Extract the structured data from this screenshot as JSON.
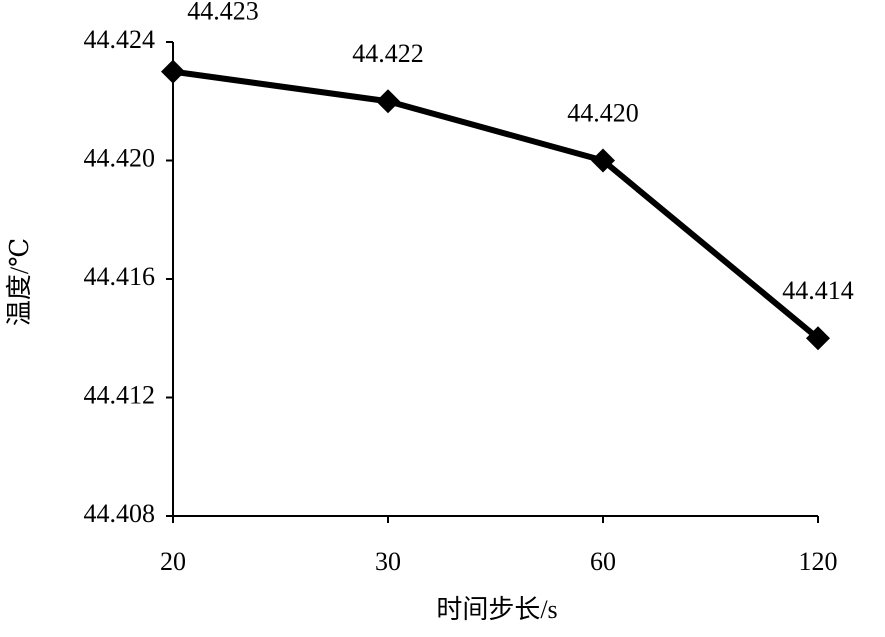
{
  "chart_data": {
    "type": "line",
    "x_label": "时间步长/s",
    "y_label": "温度/℃",
    "categories": [
      "20",
      "30",
      "60",
      "120"
    ],
    "values": [
      44.423,
      44.422,
      44.42,
      44.414
    ],
    "value_labels": [
      "44.423",
      "44.422",
      "44.420",
      "44.414"
    ],
    "color": "#000000",
    "ylim": [
      44.408,
      44.424
    ],
    "yticks": [
      44.408,
      44.412,
      44.416,
      {
        "value": 44.42,
        "label": "44.420"
      },
      44.424
    ],
    "grid": false
  }
}
